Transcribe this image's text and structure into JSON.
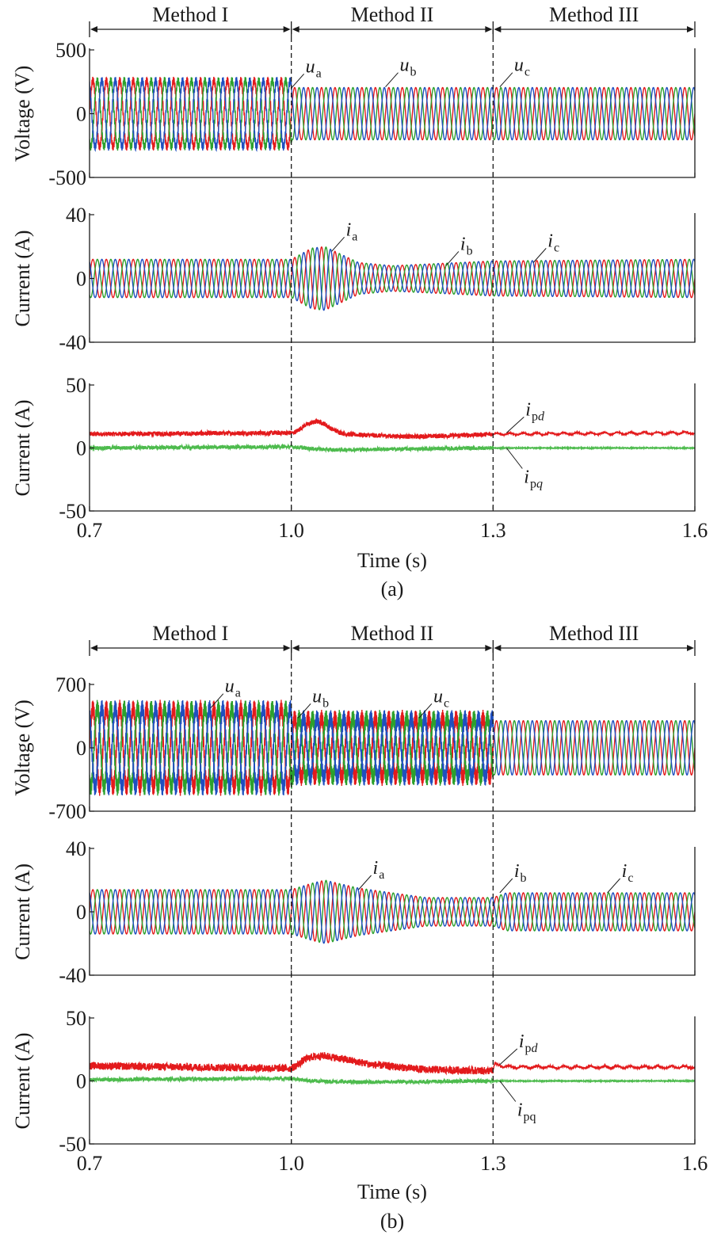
{
  "colors": {
    "phase_a": "#e31a1c",
    "phase_b": "#2ca02c",
    "phase_c": "#1f4fbf",
    "ipd": "#e31a1c",
    "ipq": "#4dbb4d"
  },
  "chart_data": [
    {
      "id": "a",
      "type": "line",
      "caption": "(a)",
      "xlabel": "Time (s)",
      "x_ticks": [
        "0.7",
        "1.0",
        "1.3",
        "1.6"
      ],
      "xlim": [
        0.7,
        1.6
      ],
      "sections": [
        {
          "label": "Method I",
          "from": 0.7,
          "to": 1.0
        },
        {
          "label": "Method II",
          "from": 1.0,
          "to": 1.3
        },
        {
          "label": "Method III",
          "from": 1.3,
          "to": 1.6
        }
      ],
      "switch_times": [
        1.0,
        1.3
      ],
      "panels": [
        {
          "id": "a-voltage",
          "ylabel": "Voltage (V)",
          "ylim": [
            -500,
            500
          ],
          "y_ticks": [
            "500",
            "0",
            "-500"
          ],
          "signal": "three_phase",
          "series": [
            {
              "name": "ua"
            },
            {
              "name": "ub"
            },
            {
              "name": "uc"
            }
          ],
          "envelope": {
            "time": [
              0.7,
              1.0,
              1.001,
              1.6
            ],
            "amplitude": [
              260,
              260,
              205,
              205
            ]
          },
          "ripple_to_1_0": 30,
          "annotations": [
            {
              "base": "u",
              "sub": "a",
              "at": [
                1.0,
                200
              ]
            },
            {
              "base": "u",
              "sub": "b",
              "at": [
                1.14,
                210
              ]
            },
            {
              "base": "u",
              "sub": "c",
              "at": [
                1.31,
                210
              ]
            }
          ]
        },
        {
          "id": "a-current",
          "ylabel": "Current (A)",
          "ylim": [
            -40,
            40
          ],
          "y_ticks": [
            "40",
            "0",
            "-40"
          ],
          "signal": "three_phase",
          "series": [
            {
              "name": "ia"
            },
            {
              "name": "ib"
            },
            {
              "name": "ic"
            }
          ],
          "envelope": {
            "time": [
              0.7,
              1.0,
              1.03,
              1.05,
              1.1,
              1.15,
              1.25,
              1.3,
              1.6
            ],
            "amplitude": [
              12,
              12,
              19,
              20,
              10,
              8,
              10,
              11,
              12
            ]
          },
          "annotations": [
            {
              "base": "i",
              "sub": "a",
              "at": [
                1.06,
                17
              ]
            },
            {
              "base": "i",
              "sub": "b",
              "at": [
                1.23,
                8
              ]
            },
            {
              "base": "i",
              "sub": "c",
              "at": [
                1.36,
                10
              ]
            }
          ]
        },
        {
          "id": "a-dq",
          "ylabel": "Current (A)",
          "ylim": [
            -50,
            50
          ],
          "y_ticks": [
            "50",
            "0",
            "-50"
          ],
          "signal": "dq",
          "series": [
            {
              "name": "ipd",
              "time": [
                0.7,
                1.0,
                1.003,
                1.01,
                1.02,
                1.03,
                1.04,
                1.05,
                1.06,
                1.08,
                1.12,
                1.18,
                1.25,
                1.3,
                1.6
              ],
              "values": [
                11,
                12,
                12,
                14,
                18,
                20,
                21,
                19,
                15,
                11,
                10,
                9,
                10,
                11,
                12
              ],
              "noise": 1.8
            },
            {
              "name": "ipq",
              "time": [
                0.7,
                1.0,
                1.01,
                1.03,
                1.06,
                1.1,
                1.3,
                1.6
              ],
              "values": [
                0,
                1,
                0.5,
                -0.5,
                -1.5,
                -1.2,
                0,
                0
              ],
              "noise": 1.5
            }
          ],
          "annotations": [
            {
              "base": "i",
              "sub": "p",
              "sub_italic": "d",
              "at": [
                1.32,
                12
              ]
            },
            {
              "base": "i",
              "sub": "p",
              "sub_italic": "q",
              "at": [
                1.32,
                0
              ]
            }
          ]
        }
      ]
    },
    {
      "id": "b",
      "type": "line",
      "caption": "(b)",
      "xlabel": "Time (s)",
      "x_ticks": [
        "0.7",
        "1.0",
        "1.3",
        "1.6"
      ],
      "xlim": [
        0.7,
        1.6
      ],
      "sections": [
        {
          "label": "Method I",
          "from": 0.7,
          "to": 1.0
        },
        {
          "label": "Method II",
          "from": 1.0,
          "to": 1.3
        },
        {
          "label": "Method III",
          "from": 1.3,
          "to": 1.6
        }
      ],
      "switch_times": [
        1.0,
        1.3
      ],
      "panels": [
        {
          "id": "b-voltage",
          "ylabel": "Voltage (V)",
          "ylim": [
            -700,
            700
          ],
          "y_ticks": [
            "700",
            "0",
            "-700"
          ],
          "signal": "three_phase",
          "series": [
            {
              "name": "ua"
            },
            {
              "name": "ub"
            },
            {
              "name": "uc"
            }
          ],
          "envelope": {
            "time": [
              0.7,
              1.0,
              1.001,
              1.3,
              1.301,
              1.6
            ],
            "amplitude": [
              440,
              440,
              330,
              330,
              300,
              300
            ]
          },
          "ripple_to_1_3": 90,
          "annotations": [
            {
              "base": "u",
              "sub": "a",
              "at": [
                0.88,
                440
              ]
            },
            {
              "base": "u",
              "sub": "b",
              "at": [
                1.01,
                330
              ]
            },
            {
              "base": "u",
              "sub": "c",
              "at": [
                1.19,
                330
              ]
            }
          ]
        },
        {
          "id": "b-current",
          "ylabel": "Current (A)",
          "ylim": [
            -40,
            40
          ],
          "y_ticks": [
            "40",
            "0",
            "-40"
          ],
          "signal": "three_phase",
          "series": [
            {
              "name": "ia"
            },
            {
              "name": "ib"
            },
            {
              "name": "ic"
            }
          ],
          "envelope": {
            "time": [
              0.7,
              1.0,
              1.03,
              1.05,
              1.1,
              1.2,
              1.3,
              1.32,
              1.6
            ],
            "amplitude": [
              14,
              14,
              18,
              20,
              15,
              9,
              9,
              12,
              12
            ]
          },
          "annotations": [
            {
              "base": "i",
              "sub": "a",
              "at": [
                1.1,
                14
              ]
            },
            {
              "base": "i",
              "sub": "b",
              "at": [
                1.31,
                12
              ]
            },
            {
              "base": "i",
              "sub": "c",
              "at": [
                1.47,
                12
              ]
            }
          ]
        },
        {
          "id": "b-dq",
          "ylabel": "Current (A)",
          "ylim": [
            -50,
            50
          ],
          "y_ticks": [
            "50",
            "0",
            "-50"
          ],
          "signal": "dq",
          "series": [
            {
              "name": "ipd",
              "time": [
                0.7,
                1.0,
                1.01,
                1.02,
                1.03,
                1.05,
                1.08,
                1.12,
                1.2,
                1.3,
                1.302,
                1.31,
                1.33,
                1.6
              ],
              "values": [
                12,
                10,
                13,
                17,
                19,
                20,
                17,
                13,
                9,
                8,
                13,
                12,
                11,
                11
              ],
              "noise": 3
            },
            {
              "name": "ipq",
              "time": [
                0.7,
                1.0,
                1.03,
                1.1,
                1.3,
                1.6
              ],
              "values": [
                1,
                2,
                0,
                -1,
                0,
                0
              ],
              "noise": 1.5
            }
          ],
          "annotations": [
            {
              "base": "i",
              "sub": "p",
              "sub_italic": "d",
              "at": [
                1.31,
                13
              ]
            },
            {
              "base": "i",
              "sub": "pq",
              "sub_italic": "",
              "at": [
                1.31,
                0
              ]
            }
          ]
        }
      ]
    }
  ]
}
